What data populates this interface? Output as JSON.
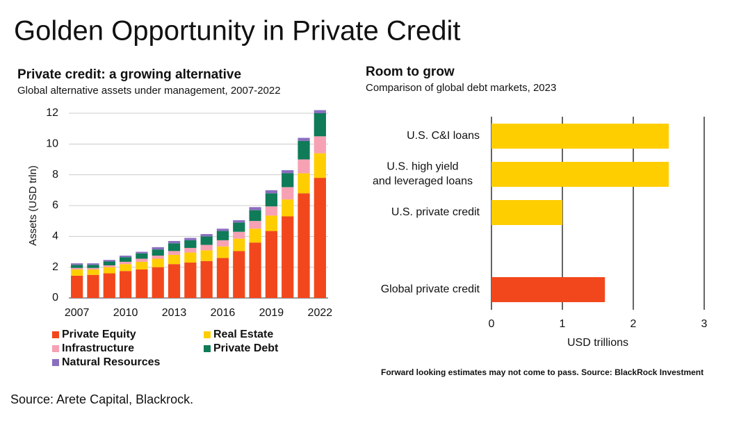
{
  "title": "Golden Opportunity in Private Credit",
  "source": "Source: Arete Capital, Blackrock.",
  "chart_data": [
    {
      "type": "stacked-bar",
      "title": "Private credit: a growing alternative",
      "subtitle": "Global alternative assets under management, 2007-2022",
      "y_label": "Assets (USD trln)",
      "categories": [
        "2007",
        null,
        null,
        "2010",
        null,
        null,
        "2013",
        null,
        null,
        "2016",
        null,
        null,
        "2019",
        null,
        null,
        "2022"
      ],
      "series": [
        {
          "name": "Private Equity",
          "color": "#f2471c",
          "values": [
            1.45,
            1.5,
            1.6,
            1.75,
            1.85,
            2.0,
            2.2,
            2.3,
            2.4,
            2.6,
            3.05,
            3.6,
            4.35,
            5.3,
            6.8,
            7.8
          ]
        },
        {
          "name": "Real Estate",
          "color": "#ffce00",
          "values": [
            0.4,
            0.35,
            0.4,
            0.45,
            0.5,
            0.55,
            0.6,
            0.65,
            0.7,
            0.75,
            0.8,
            0.9,
            1.0,
            1.1,
            1.3,
            1.6
          ]
        },
        {
          "name": "Infrastructure",
          "color": "#f7a1b4",
          "values": [
            0.1,
            0.1,
            0.12,
            0.15,
            0.2,
            0.2,
            0.25,
            0.3,
            0.35,
            0.4,
            0.45,
            0.5,
            0.6,
            0.8,
            0.9,
            1.1
          ]
        },
        {
          "name": "Private Debt",
          "color": "#0f7b58",
          "values": [
            0.2,
            0.2,
            0.25,
            0.3,
            0.35,
            0.4,
            0.5,
            0.5,
            0.55,
            0.6,
            0.6,
            0.7,
            0.85,
            0.9,
            1.2,
            1.5
          ]
        },
        {
          "name": "Natural Resources",
          "color": "#8a6fc0",
          "values": [
            0.1,
            0.1,
            0.1,
            0.1,
            0.1,
            0.15,
            0.15,
            0.15,
            0.15,
            0.15,
            0.15,
            0.2,
            0.2,
            0.2,
            0.2,
            0.2
          ]
        }
      ],
      "ylim": [
        0,
        12
      ],
      "yticks": [
        0,
        2,
        4,
        6,
        8,
        10,
        12
      ],
      "grid": true
    },
    {
      "type": "barh",
      "title": "Room to grow",
      "subtitle": "Comparison of global debt markets, 2023",
      "categories": [
        [
          "U.S. C&I loans"
        ],
        [
          "U.S. high yield",
          "and leveraged loans"
        ],
        [
          "U.S. private credit"
        ],
        [
          "Global private credit"
        ]
      ],
      "values": [
        2.5,
        2.5,
        1.0,
        1.6
      ],
      "colors": [
        "#ffce00",
        "#ffce00",
        "#ffce00",
        "#f2471c"
      ],
      "xlim": [
        0,
        3
      ],
      "xticks": [
        0,
        1,
        2,
        3
      ],
      "x_label": "USD trillions",
      "grid": true,
      "note": "Forward looking estimates may not come to pass. Source: BlackRock Investment"
    }
  ]
}
